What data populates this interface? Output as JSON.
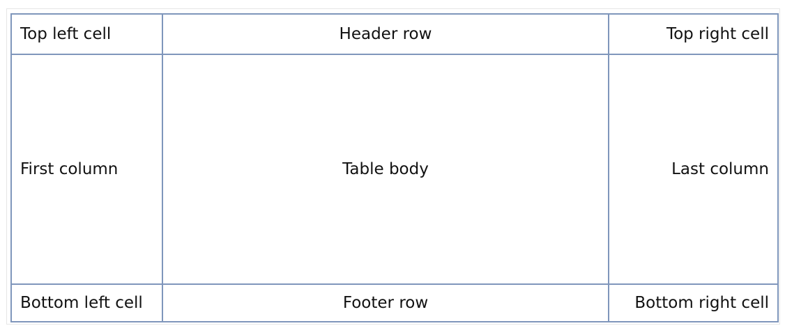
{
  "table": {
    "top": {
      "left": "Top left cell",
      "center": "Header row",
      "right": "Top right cell"
    },
    "middle": {
      "left": "First column",
      "center": "Table body",
      "right": "Last column"
    },
    "bottom": {
      "left": "Bottom left cell",
      "center": "Footer row",
      "right": "Bottom right cell"
    }
  },
  "colors": {
    "border": "#7f96bb",
    "text": "#111111",
    "frame": "#e6e6e6"
  }
}
